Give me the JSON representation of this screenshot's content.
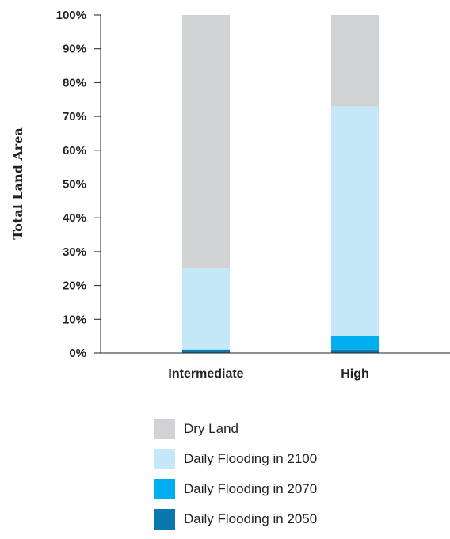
{
  "chart_data": {
    "type": "bar",
    "stacked": true,
    "title": "",
    "xlabel": "",
    "ylabel": "Total Land Area",
    "ylim": [
      0,
      100
    ],
    "yticks": [
      "0%",
      "10%",
      "20%",
      "30%",
      "40%",
      "50%",
      "60%",
      "70%",
      "80%",
      "90%",
      "100%"
    ],
    "categories": [
      "Intermediate",
      "High"
    ],
    "series": [
      {
        "name": "Daily Flooding in 2050",
        "color": "#0b78ad",
        "values": [
          1,
          1
        ]
      },
      {
        "name": "Daily Flooding in 2070",
        "color": "#00aeef",
        "values": [
          0,
          4
        ]
      },
      {
        "name": "Daily Flooding in 2100",
        "color": "#c5e8f8",
        "values": [
          24,
          68
        ]
      },
      {
        "name": "Dry Land",
        "color": "#d1d2d4",
        "values": [
          75,
          27
        ]
      }
    ],
    "legend": {
      "position": "bottom",
      "order": [
        "Dry Land",
        "Daily Flooding in 2100",
        "Daily Flooding in 2070",
        "Daily Flooding in 2050"
      ]
    }
  }
}
